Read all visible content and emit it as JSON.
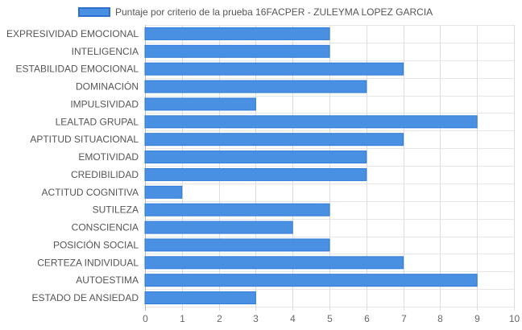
{
  "chart_data": {
    "type": "bar",
    "orientation": "horizontal",
    "categories": [
      "EXPRESIVIDAD EMOCIONAL",
      "INTELIGENCIA",
      "ESTABILIDAD EMOCIONAL",
      "DOMINACIÓN",
      "IMPULSIVIDAD",
      "LEALTAD GRUPAL",
      "APTITUD SITUACIONAL",
      "EMOTIVIDAD",
      "CREDIBILIDAD",
      "ACTITUD COGNITIVA",
      "SUTILEZA",
      "CONSCIENCIA",
      "POSICIÓN SOCIAL",
      "CERTEZA INDIVIDUAL",
      "AUTOESTIMA",
      "ESTADO DE ANSIEDAD"
    ],
    "series": [
      {
        "name": "Puntaje por criterio de la prueba 16FACPER - ZULEYMA LOPEZ GARCIA",
        "values": [
          5,
          5,
          7,
          6,
          3,
          9,
          7,
          6,
          6,
          1,
          5,
          4,
          5,
          7,
          9,
          3
        ],
        "color": "#4a90e2"
      }
    ],
    "xlim": [
      0,
      10
    ],
    "xticks": [
      "0",
      "1",
      "2",
      "3",
      "4",
      "5",
      "6",
      "7",
      "8",
      "9",
      "10"
    ],
    "grid": true,
    "legend_position": "top-center"
  }
}
